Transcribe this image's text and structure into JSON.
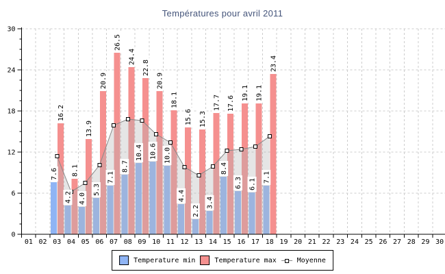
{
  "title": "Températures pour avril 2011",
  "legend": {
    "min_label": "Temperature min",
    "max_label": "Temperature max",
    "avg_label": "Moyenne"
  },
  "colors": {
    "min_bar": "#8fb4f4",
    "max_bar": "#f5908f",
    "avg_line": "#888888",
    "avg_area": "rgba(180,180,180,0.35)",
    "marker_fill": "#ffffff",
    "marker_stroke": "#000000",
    "grid": "#cccccc",
    "axis": "#000000",
    "tick_text": "#000000",
    "title_text": "#44547a"
  },
  "chart_data": {
    "type": "bar",
    "title": "Températures pour avril 2011",
    "categories": [
      "01",
      "02",
      "03",
      "04",
      "05",
      "06",
      "07",
      "08",
      "09",
      "10",
      "11",
      "12",
      "13",
      "14",
      "15",
      "16",
      "17",
      "18",
      "19",
      "20",
      "21",
      "22",
      "23",
      "24",
      "25",
      "26",
      "27",
      "28",
      "29",
      "30"
    ],
    "start_day": 3,
    "series": [
      {
        "name": "Temperature min",
        "type": "bar",
        "values": [
          7.6,
          4.2,
          4.0,
          5.3,
          7.1,
          8.7,
          10.4,
          10.6,
          10.0,
          4.4,
          2.2,
          3.4,
          8.4,
          6.3,
          6.1,
          7.1
        ]
      },
      {
        "name": "Temperature max",
        "type": "bar",
        "values": [
          16.2,
          8.1,
          13.9,
          20.9,
          26.5,
          24.4,
          22.8,
          20.9,
          18.1,
          15.6,
          15.3,
          17.7,
          17.6,
          19.1,
          19.1,
          23.4
        ]
      },
      {
        "name": "Moyenne",
        "type": "line",
        "values_estimated": true,
        "values": [
          11.4,
          6.2,
          7.5,
          10.1,
          15.9,
          16.8,
          16.6,
          14.6,
          13.4,
          9.8,
          8.6,
          9.9,
          12.2,
          12.4,
          12.8,
          14.3
        ]
      }
    ],
    "ylim": [
      0,
      30
    ],
    "yticks": [
      0,
      6,
      12,
      18,
      24,
      30
    ],
    "y_minor_step": 1.5,
    "grid": true,
    "value_labels": "rotated-90",
    "legend_position": "bottom"
  }
}
